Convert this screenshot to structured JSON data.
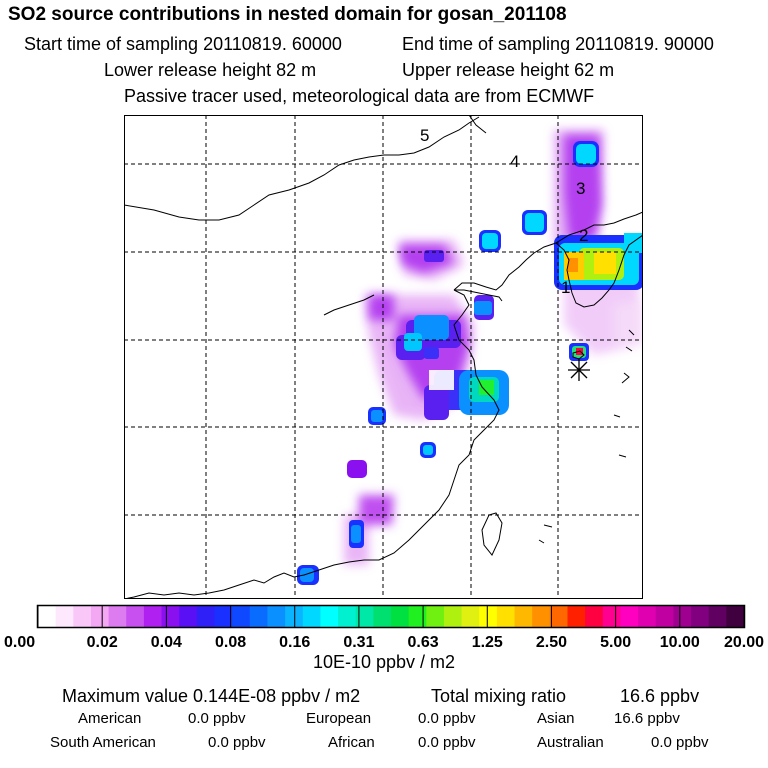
{
  "header": {
    "title": "SO2 source contributions in nested domain for gosan_201108",
    "start_time": "Start time of sampling 20110819. 60000",
    "end_time": "End time of sampling 20110819. 90000",
    "lower_release": "Lower release height   82 m",
    "upper_release": "Upper release height   62 m",
    "tracer_note": "Passive tracer used, meteorological data are from ECMWF"
  },
  "map": {
    "release_labels": [
      "1",
      "2",
      "3",
      "4",
      "5"
    ],
    "receptor_icon": "asterisk-icon"
  },
  "colorbar": {
    "tick_labels": [
      "0.00",
      "0.02",
      "0.04",
      "0.08",
      "0.16",
      "0.31",
      "0.63",
      "1.25",
      "2.50",
      "5.00",
      "10.00",
      "20.00"
    ],
    "colors": [
      "#ffffff",
      "#fde8fd",
      "#f9c8f9",
      "#f4a8f4",
      "#dd7cf0",
      "#c84ff0",
      "#b020f0",
      "#8a10f0",
      "#5a10f5",
      "#3020f8",
      "#1a30ff",
      "#1048ff",
      "#0a6cff",
      "#0a90ff",
      "#0ab4ff",
      "#00d8ff",
      "#00ffff",
      "#00f0d0",
      "#00e8a8",
      "#00e070",
      "#00e040",
      "#20f020",
      "#70f010",
      "#b0f010",
      "#e0f010",
      "#ffff00",
      "#ffe000",
      "#ffb800",
      "#ff9000",
      "#ff6800",
      "#ff2000",
      "#ff0040",
      "#ff0090",
      "#ff00c0",
      "#e000b0",
      "#c000a0",
      "#a00090",
      "#800080",
      "#600060",
      "#400040"
    ],
    "unit": "10E-10 ppbv / m2"
  },
  "summary": {
    "max_label": "Maximum value  0.144E-08 ppbv / m2",
    "total_label": "Total mixing ratio",
    "total_value": "16.6 ppbv",
    "regions": [
      {
        "name": "American",
        "value": "0.0 ppbv"
      },
      {
        "name": "European",
        "value": "0.0 ppbv"
      },
      {
        "name": "Asian",
        "value": "16.6 ppbv"
      },
      {
        "name": "South American",
        "value": "0.0 ppbv"
      },
      {
        "name": "African",
        "value": "0.0 ppbv"
      },
      {
        "name": "Australian",
        "value": "0.0 ppbv"
      }
    ]
  }
}
